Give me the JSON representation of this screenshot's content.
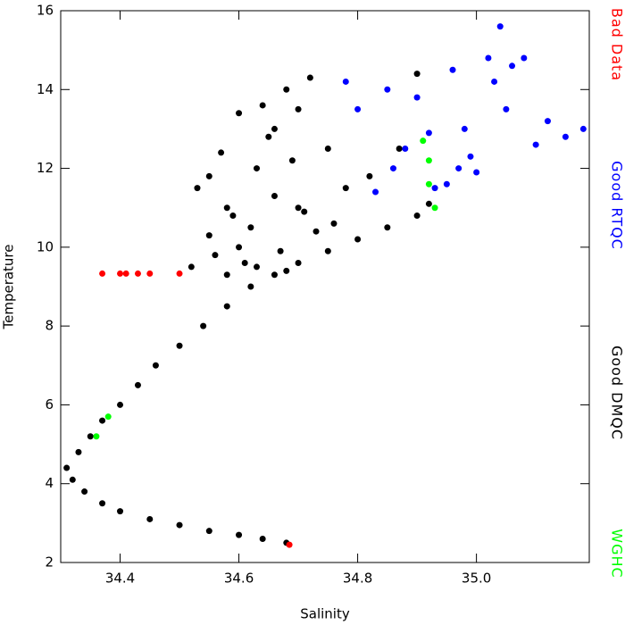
{
  "chart_data": {
    "type": "scatter",
    "xlabel": "Salinity",
    "ylabel": "Temperature",
    "xlim": [
      34.3,
      35.19
    ],
    "xticks": [
      34.4,
      34.6,
      34.8,
      {
        "value": 35.0,
        "label": "35.0"
      }
    ],
    "ylim": [
      2,
      16
    ],
    "yticks": [
      2,
      4,
      6,
      8,
      10,
      12,
      14,
      16
    ],
    "series": [
      {
        "name": "Bad Data",
        "color": "#ff0000",
        "x": [
          34.37,
          34.4,
          34.41,
          34.43,
          34.45,
          34.5,
          34.685
        ],
        "y": [
          9.33,
          9.33,
          9.33,
          9.33,
          9.33,
          9.33,
          2.45
        ]
      },
      {
        "name": "Good RTQC",
        "color": "#0000ff",
        "x": [
          34.78,
          34.8,
          34.85,
          34.88,
          34.9,
          34.93,
          34.96,
          34.98,
          35.0,
          35.02,
          35.04,
          35.06,
          35.08,
          35.12,
          35.15,
          35.18,
          34.95,
          34.97,
          35.03,
          35.05,
          34.86,
          34.83,
          34.92,
          34.99,
          35.1
        ],
        "y": [
          14.2,
          13.5,
          14.0,
          12.5,
          13.8,
          11.5,
          14.5,
          13.0,
          11.9,
          14.8,
          15.6,
          14.6,
          14.8,
          13.2,
          12.8,
          13.0,
          11.6,
          12.0,
          14.2,
          13.5,
          12.0,
          11.4,
          12.9,
          12.3,
          12.6
        ]
      },
      {
        "name": "Good DMQC",
        "color": "#000000",
        "x": [
          34.68,
          34.64,
          34.6,
          34.55,
          34.5,
          34.45,
          34.4,
          34.37,
          34.34,
          34.32,
          34.31,
          34.33,
          34.35,
          34.37,
          34.4,
          34.43,
          34.46,
          34.5,
          34.54,
          34.58,
          34.62,
          34.66,
          34.7,
          34.75,
          34.8,
          34.85,
          34.9,
          34.52,
          34.55,
          34.58,
          34.6,
          34.63,
          34.66,
          34.7,
          34.72,
          34.75,
          34.78,
          34.55,
          34.6,
          34.65,
          34.68,
          34.7,
          34.62,
          34.56,
          34.53,
          34.57,
          34.64,
          34.69,
          34.73,
          34.67,
          34.61,
          34.59,
          34.66,
          34.71,
          34.76,
          34.82,
          34.87,
          34.9,
          34.92,
          34.58,
          34.63,
          34.68
        ],
        "y": [
          2.5,
          2.6,
          2.7,
          2.8,
          2.95,
          3.1,
          3.3,
          3.5,
          3.8,
          4.1,
          4.4,
          4.8,
          5.2,
          5.6,
          6.0,
          6.5,
          7.0,
          7.5,
          8.0,
          8.5,
          9.0,
          9.3,
          9.6,
          9.9,
          10.2,
          10.5,
          10.8,
          9.5,
          10.3,
          11.0,
          10.0,
          12.0,
          13.0,
          13.5,
          14.3,
          12.5,
          11.5,
          11.8,
          13.4,
          12.8,
          14.0,
          11.0,
          10.5,
          9.8,
          11.5,
          12.4,
          13.6,
          12.2,
          10.4,
          9.9,
          9.6,
          10.8,
          11.3,
          10.9,
          10.6,
          11.8,
          12.5,
          14.4,
          11.1,
          9.3,
          9.5,
          9.4
        ]
      },
      {
        "name": "WGHC",
        "color": "#00ff00",
        "x": [
          34.91,
          34.92,
          34.93,
          34.92,
          34.38,
          34.36
        ],
        "y": [
          12.7,
          12.2,
          11.0,
          11.6,
          5.7,
          5.2
        ]
      }
    ]
  }
}
